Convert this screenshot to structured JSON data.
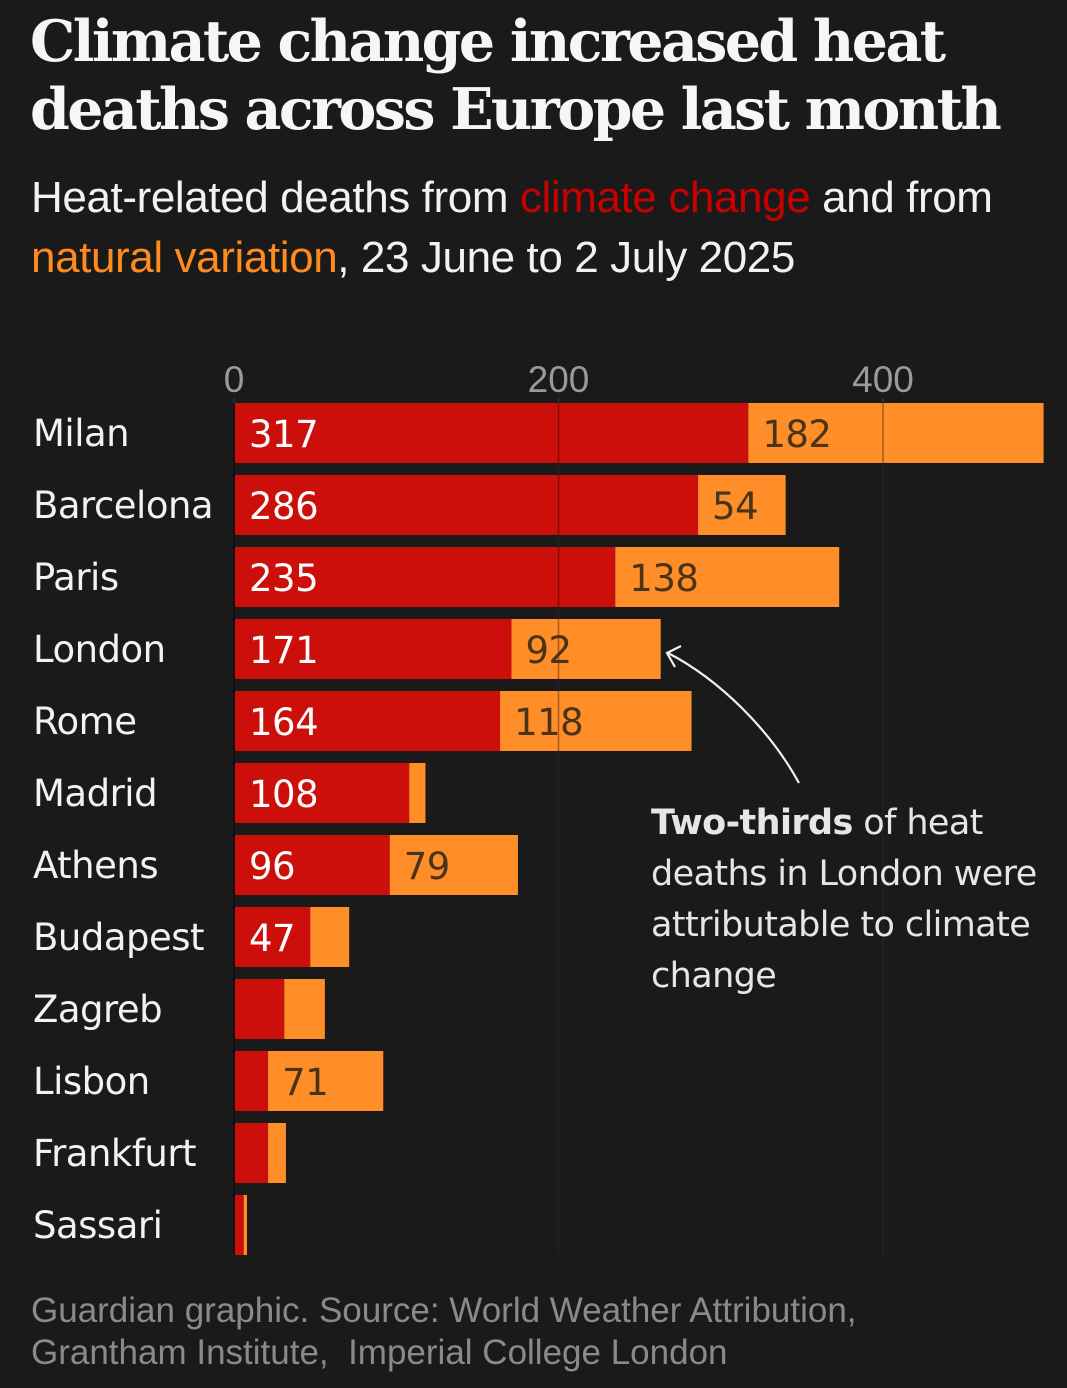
{
  "header": {
    "title": "Climate change increased heat deaths across Europe last month",
    "subtitle_parts": {
      "prefix": "Heat-related deaths from ",
      "climate_change": "climate change",
      "middle": " and from ",
      "natural_variation": "natural variation",
      "suffix": ", 23 June to 2 July 2025"
    }
  },
  "colors": {
    "background": "#1a1a1a",
    "climate_change": "#cc0f0a",
    "natural_variation": "#ff8d28",
    "label_on_red": "#ffffff",
    "label_on_orange": "#4a3418",
    "gridline": "#2b2b2b",
    "tick_label": "#9a9a9a"
  },
  "annotation": {
    "bold": "Two-thirds",
    "rest": " of heat deaths in London were attributable to climate change",
    "target": "London"
  },
  "caption": {
    "line1": "Guardian graphic. Source: World Weather Attribution,",
    "line2": "Grantham Institute,  Imperial College London"
  },
  "chart_data": {
    "type": "bar",
    "orientation": "horizontal",
    "stacked": true,
    "title": "Climate change increased heat deaths across Europe last month",
    "subtitle": "Heat-related deaths from climate change and from natural variation, 23 June to 2 July 2025",
    "xlabel": "",
    "ylabel": "",
    "xlim": [
      0,
      499
    ],
    "xticks": [
      0,
      200,
      400
    ],
    "grid": true,
    "legend": "inline-in-subtitle",
    "categories": [
      "Milan",
      "Barcelona",
      "Paris",
      "London",
      "Rome",
      "Madrid",
      "Athens",
      "Budapest",
      "Zagreb",
      "Lisbon",
      "Frankfurt",
      "Sassari"
    ],
    "series": [
      {
        "name": "climate change",
        "values": [
          317,
          286,
          235,
          171,
          164,
          108,
          96,
          47,
          31,
          21,
          21,
          6
        ],
        "labels": [
          "317",
          "286",
          "235",
          "171",
          "164",
          "108",
          "96",
          "47",
          "",
          "",
          "",
          ""
        ]
      },
      {
        "name": "natural variation",
        "values": [
          182,
          54,
          138,
          92,
          118,
          10,
          79,
          24,
          25,
          71,
          11,
          2
        ],
        "labels": [
          "182",
          "54",
          "138",
          "92",
          "118",
          "",
          "79",
          "",
          "",
          "71",
          "",
          ""
        ]
      }
    ]
  }
}
